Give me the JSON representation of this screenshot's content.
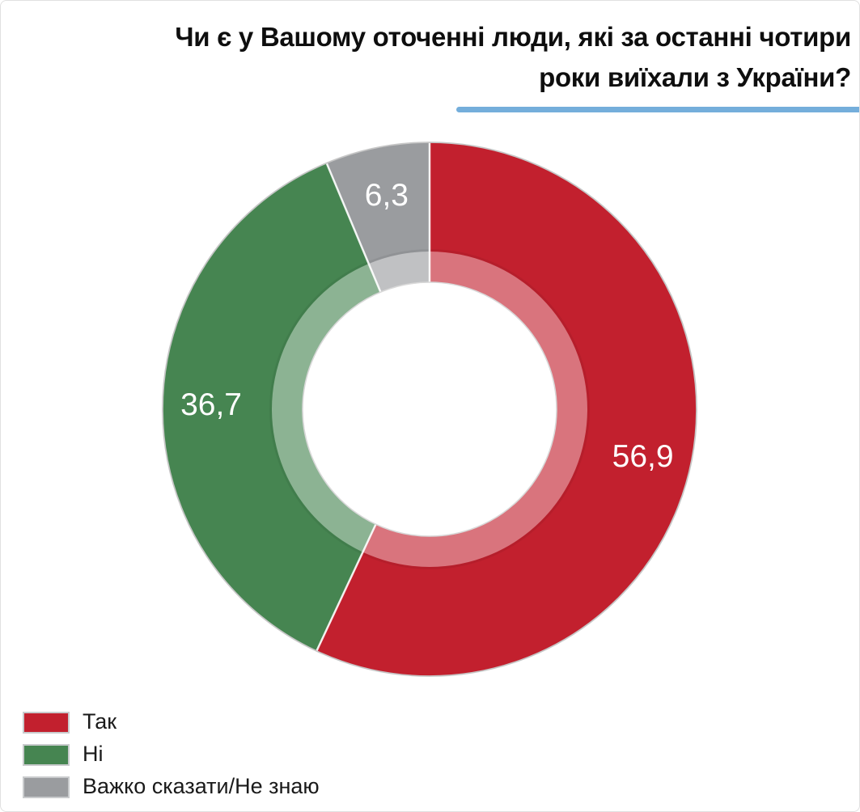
{
  "header": {
    "title_lines": [
      "Чи є у Вашому оточенні люди, які за останні чотири",
      "роки виїхали з України?"
    ],
    "underline_color": "#74aedb"
  },
  "chart_data": {
    "type": "pie",
    "variant": "donut",
    "title": "Чи є у Вашому оточенні люди, які за останні чотири роки виїхали з України?",
    "categories": [
      "Так",
      "Ні",
      "Важко сказати/Не знаю"
    ],
    "values": [
      56.9,
      36.7,
      6.3
    ],
    "value_labels": [
      "56,9",
      "36,7",
      "6,3"
    ],
    "colors": [
      "#c2202e",
      "#468551",
      "#9a9c9f"
    ],
    "start_angle_deg": 0,
    "direction": "clockwise",
    "inner_radius_ratio": 0.48,
    "inner_band": {
      "color": "#ffffff",
      "opacity": 0.38
    },
    "label_color": "#ffffff",
    "legend_position": "bottom-left"
  },
  "legend": {
    "items": [
      {
        "label": "Так",
        "color": "#c2202e"
      },
      {
        "label": "Ні",
        "color": "#468551"
      },
      {
        "label": "Важко сказати/Не знаю",
        "color": "#9a9c9f"
      }
    ]
  }
}
